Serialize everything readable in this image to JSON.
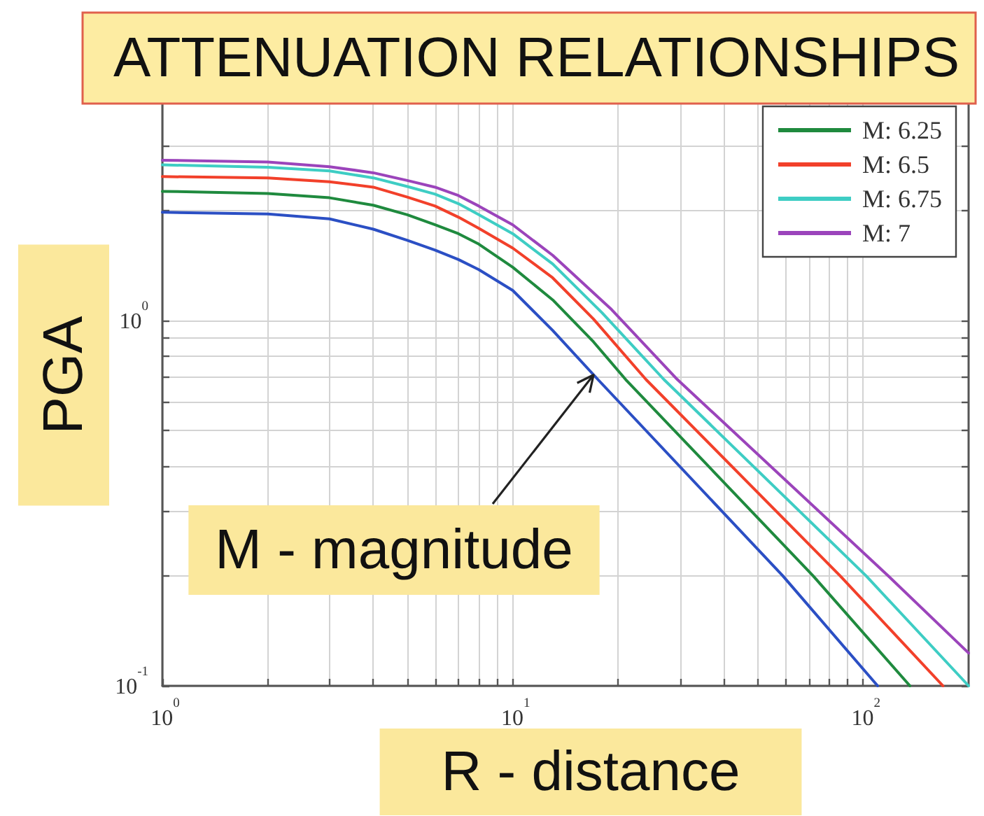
{
  "chart_data": {
    "type": "line",
    "title": "ATTENUATION RELATIONSHIPS",
    "xlabel": "R - distance",
    "ylabel": "PGA",
    "log": "xy",
    "grid": true,
    "legend": "top right",
    "marker": "none",
    "line_style": "solid",
    "xlim": [
      1,
      200
    ],
    "ylim": [
      0.1,
      4
    ],
    "xticks": [
      {
        "value": 1,
        "label": "10$^{0}$"
      },
      {
        "value": 2,
        "label": null
      },
      {
        "value": 3,
        "label": null
      },
      {
        "value": 4,
        "label": null
      },
      {
        "value": 5,
        "label": null
      },
      {
        "value": 6,
        "label": null
      },
      {
        "value": 7,
        "label": null
      },
      {
        "value": 8,
        "label": null
      },
      {
        "value": 9,
        "label": null
      },
      {
        "value": 10,
        "label": "10$^{1}$"
      },
      {
        "value": 20,
        "label": null
      },
      {
        "value": 30,
        "label": null
      },
      {
        "value": 40,
        "label": null
      },
      {
        "value": 50,
        "label": null
      },
      {
        "value": 60,
        "label": null
      },
      {
        "value": 70,
        "label": null
      },
      {
        "value": 80,
        "label": null
      },
      {
        "value": 90,
        "label": null
      },
      {
        "value": 100,
        "label": "10$^{2}$"
      }
    ],
    "yticks": [
      {
        "value": 0.1,
        "label": "10$^{-1}$"
      },
      {
        "value": 0.2,
        "label": null
      },
      {
        "value": 0.3,
        "label": null
      },
      {
        "value": 0.4,
        "label": null
      },
      {
        "value": 0.5,
        "label": null
      },
      {
        "value": 0.6,
        "label": null
      },
      {
        "value": 0.7,
        "label": null
      },
      {
        "value": 0.8,
        "label": null
      },
      {
        "value": 0.9,
        "label": null
      },
      {
        "value": 1,
        "label": "10$^{0}$"
      },
      {
        "value": 2,
        "label": null
      },
      {
        "value": 3,
        "label": null
      }
    ],
    "annotations": [
      {
        "text": "M - magnitude",
        "x": 17,
        "y": 0.71
      }
    ],
    "series": [
      {
        "color": "#2b4fc4",
        "x": [
          1,
          2,
          3,
          4,
          5,
          6,
          7,
          8,
          10,
          13,
          17.5,
          59,
          110
        ],
        "values": [
          1.98,
          1.96,
          1.9,
          1.78,
          1.66,
          1.56,
          1.47,
          1.38,
          1.21,
          0.94,
          0.69,
          0.2,
          0.1
        ]
      },
      {
        "name": "M: 6.25",
        "color": "#1f8a3e",
        "x": [
          1,
          2,
          3,
          4,
          5,
          6,
          7,
          8,
          10,
          13,
          17,
          21,
          72,
          136
        ],
        "values": [
          2.26,
          2.23,
          2.17,
          2.07,
          1.95,
          1.83,
          1.73,
          1.62,
          1.4,
          1.14,
          0.875,
          0.69,
          0.2,
          0.1
        ]
      },
      {
        "name": "M: 6.5",
        "color": "#f2402a",
        "x": [
          1,
          2,
          3,
          4,
          5,
          6,
          7,
          8,
          10,
          13,
          17,
          24,
          86,
          169
        ],
        "values": [
          2.48,
          2.46,
          2.4,
          2.32,
          2.18,
          2.06,
          1.92,
          1.79,
          1.58,
          1.31,
          1.01,
          0.69,
          0.2,
          0.1
        ]
      },
      {
        "name": "M: 6.75",
        "color": "#3ecdc4",
        "x": [
          1,
          2,
          3,
          4,
          5,
          6,
          7,
          8,
          10,
          13,
          18,
          27,
          102,
          200
        ],
        "values": [
          2.67,
          2.63,
          2.57,
          2.46,
          2.33,
          2.22,
          2.09,
          1.95,
          1.73,
          1.43,
          1.05,
          0.69,
          0.2,
          0.1
        ]
      },
      {
        "name": "M: 7",
        "color": "#9b44bb",
        "x": [
          1,
          2,
          3,
          4,
          5,
          6,
          7,
          8,
          10,
          13,
          19,
          29.5,
          118,
          200
        ],
        "values": [
          2.75,
          2.72,
          2.64,
          2.54,
          2.42,
          2.32,
          2.2,
          2.06,
          1.83,
          1.51,
          1.08,
          0.69,
          0.2,
          0.123
        ]
      }
    ]
  }
}
